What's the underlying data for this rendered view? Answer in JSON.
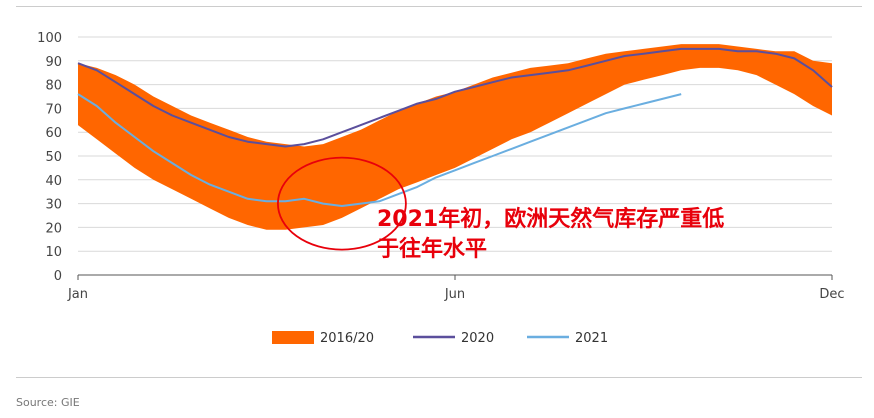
{
  "chart_data": {
    "type": "area",
    "x_tick_labels": [
      "Jan",
      "Jun",
      "Dec"
    ],
    "x_tick_months": [
      1,
      6,
      11
    ],
    "y_ticks": [
      0,
      10,
      20,
      30,
      40,
      50,
      60,
      70,
      80,
      90,
      100
    ],
    "ylim": [
      0,
      100
    ],
    "xlim": [
      1,
      11
    ],
    "grid": "horizontal",
    "legend_position": "bottom",
    "colors": {
      "band": "#ff6600",
      "s2020": "#5b4f9c",
      "s2021": "#6aaee0",
      "annotation": "#e8000b",
      "grid": "#d9d9d9"
    },
    "band": {
      "name": "2016/20",
      "x": [
        1,
        1.25,
        1.5,
        1.75,
        2.0,
        2.25,
        2.5,
        2.75,
        3.0,
        3.25,
        3.5,
        3.75,
        4.0,
        4.25,
        4.5,
        4.75,
        5.0,
        5.25,
        5.5,
        5.75,
        6.0,
        6.25,
        6.5,
        6.75,
        7.0,
        7.25,
        7.5,
        7.75,
        8.0,
        8.25,
        8.5,
        8.75,
        9.0,
        9.25,
        9.5,
        9.75,
        10.0,
        10.25,
        10.5,
        10.75,
        11.0
      ],
      "upper": [
        89,
        87,
        84,
        80,
        75,
        71,
        67,
        64,
        61,
        58,
        56,
        55,
        54,
        55,
        58,
        61,
        65,
        69,
        72,
        75,
        77,
        80,
        83,
        85,
        87,
        88,
        89,
        91,
        93,
        94,
        95,
        96,
        97,
        97,
        97,
        96,
        95,
        94,
        94,
        90,
        89
      ],
      "lower": [
        63,
        57,
        51,
        45,
        40,
        36,
        32,
        28,
        24,
        21,
        19,
        19,
        20,
        21,
        24,
        28,
        32,
        36,
        39,
        42,
        45,
        49,
        53,
        57,
        60,
        64,
        68,
        72,
        76,
        80,
        82,
        84,
        86,
        87,
        87,
        86,
        84,
        80,
        76,
        71,
        67
      ]
    },
    "series": [
      {
        "name": "2020",
        "x": [
          1,
          1.25,
          1.5,
          1.75,
          2.0,
          2.25,
          2.5,
          2.75,
          3.0,
          3.25,
          3.5,
          3.75,
          4.0,
          4.25,
          4.5,
          4.75,
          5.0,
          5.25,
          5.5,
          5.75,
          6.0,
          6.25,
          6.5,
          6.75,
          7.0,
          7.25,
          7.5,
          7.75,
          8.0,
          8.25,
          8.5,
          8.75,
          9.0,
          9.25,
          9.5,
          9.75,
          10.0,
          10.25,
          10.5,
          10.75,
          11.0
        ],
        "values": [
          89,
          86,
          81,
          76,
          71,
          67,
          64,
          61,
          58,
          56,
          55,
          54,
          55,
          57,
          60,
          63,
          66,
          69,
          72,
          74,
          77,
          79,
          81,
          83,
          84,
          85,
          86,
          88,
          90,
          92,
          93,
          94,
          95,
          95,
          95,
          94,
          94,
          93,
          91,
          86,
          79
        ]
      },
      {
        "name": "2021",
        "x": [
          1,
          1.25,
          1.5,
          1.75,
          2.0,
          2.25,
          2.5,
          2.75,
          3.0,
          3.25,
          3.5,
          3.75,
          4.0,
          4.25,
          4.5,
          4.75,
          5.0,
          5.25,
          5.5,
          5.75,
          6.0,
          6.25,
          6.5,
          6.75,
          7.0,
          7.25,
          7.5,
          7.75,
          8.0,
          8.25,
          8.5,
          8.75,
          9.0
        ],
        "values": [
          76,
          71,
          64,
          58,
          52,
          47,
          42,
          38,
          35,
          32,
          31,
          31,
          32,
          30,
          29,
          30,
          31,
          34,
          37,
          41,
          44,
          47,
          50,
          53,
          56,
          59,
          62,
          65,
          68,
          70,
          72,
          74,
          76
        ]
      }
    ],
    "legend": [
      "2016/20",
      "2020",
      "2021"
    ],
    "annotation": {
      "line1": "2021年初，欧洲天然气库存严重低",
      "line2": "于往年水平",
      "circle_center_data": [
        4.5,
        30
      ]
    },
    "source": "Source: GIE"
  }
}
